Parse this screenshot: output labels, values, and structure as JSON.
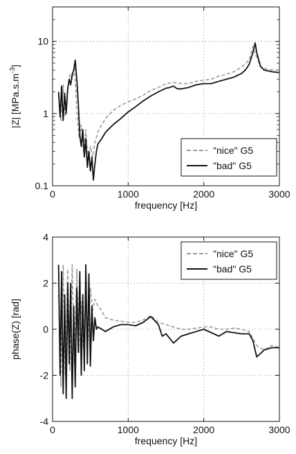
{
  "chart_data": [
    {
      "type": "line",
      "ylabel": "|Z| [MPa.s.m^-3]",
      "xlabel": "frequency [Hz]",
      "xlim": [
        0,
        3000
      ],
      "ylim": [
        0.1,
        30
      ],
      "yscale": "log",
      "grid": true,
      "legend_position": "bottom-right",
      "xticks": [
        0,
        1000,
        2000,
        3000
      ],
      "xtick_labels": [
        "0",
        "1000",
        "2000",
        "3000"
      ],
      "yticks": [
        0.1,
        1,
        10
      ],
      "ytick_labels": [
        "0.1",
        "1",
        "10"
      ],
      "series": [
        {
          "name": "\"nice\" G5",
          "style": "dashed",
          "color": "#9a9a9a",
          "x": [
            80,
            110,
            140,
            170,
            200,
            230,
            260,
            290,
            320,
            350,
            380,
            410,
            440,
            470,
            500,
            530,
            560,
            600,
            650,
            700,
            800,
            900,
            1000,
            1100,
            1200,
            1300,
            1400,
            1500,
            1600,
            1700,
            1800,
            1900,
            2000,
            2100,
            2200,
            2300,
            2400,
            2500,
            2600,
            2650,
            2700,
            2750,
            2800,
            2900,
            3000
          ],
          "y": [
            1.8,
            0.8,
            2.5,
            0.9,
            2.2,
            3.5,
            3.0,
            4.5,
            1.2,
            0.45,
            0.7,
            0.3,
            0.6,
            0.2,
            0.35,
            0.25,
            0.4,
            0.55,
            0.7,
            0.85,
            1.1,
            1.3,
            1.45,
            1.6,
            1.8,
            2.1,
            2.3,
            2.6,
            2.7,
            2.6,
            2.6,
            2.8,
            2.9,
            3.0,
            3.3,
            3.5,
            3.8,
            4.4,
            5.5,
            8.5,
            6.0,
            4.5,
            4.2,
            4.0,
            4.0
          ]
        },
        {
          "name": "\"bad\" G5",
          "style": "solid",
          "color": "#111111",
          "x": [
            80,
            100,
            120,
            140,
            160,
            180,
            200,
            220,
            240,
            260,
            280,
            300,
            320,
            340,
            360,
            380,
            400,
            420,
            440,
            460,
            480,
            500,
            520,
            540,
            560,
            580,
            600,
            650,
            700,
            750,
            800,
            900,
            1000,
            1100,
            1200,
            1300,
            1400,
            1500,
            1550,
            1600,
            1650,
            1700,
            1800,
            1900,
            2000,
            2100,
            2200,
            2300,
            2400,
            2500,
            2550,
            2600,
            2650,
            2680,
            2700,
            2750,
            2800,
            2900,
            3000
          ],
          "y": [
            2.0,
            0.9,
            2.4,
            0.8,
            1.9,
            1.0,
            2.2,
            3.0,
            2.5,
            3.5,
            4.0,
            5.5,
            3.0,
            1.4,
            0.5,
            0.35,
            0.6,
            0.25,
            0.45,
            0.18,
            0.3,
            0.16,
            0.25,
            0.12,
            0.2,
            0.3,
            0.38,
            0.45,
            0.55,
            0.62,
            0.7,
            0.85,
            1.05,
            1.25,
            1.5,
            1.75,
            2.0,
            2.25,
            2.3,
            2.4,
            2.2,
            2.2,
            2.3,
            2.5,
            2.6,
            2.6,
            2.8,
            3.0,
            3.2,
            3.6,
            4.0,
            4.8,
            7.0,
            9.5,
            7.0,
            4.5,
            4.0,
            3.8,
            3.7
          ]
        }
      ]
    },
    {
      "type": "line",
      "ylabel": "phase(Z) [rad]",
      "xlabel": "frequency [Hz]",
      "xlim": [
        0,
        3000
      ],
      "ylim": [
        -4,
        4
      ],
      "grid": true,
      "legend_position": "top-right",
      "xticks": [
        0,
        1000,
        2000,
        3000
      ],
      "xtick_labels": [
        "0",
        "1000",
        "2000",
        "3000"
      ],
      "yticks": [
        -4,
        -2,
        0,
        2,
        4
      ],
      "ytick_labels": [
        "-4",
        "-2",
        "0",
        "2",
        "4"
      ],
      "series": [
        {
          "name": "\"nice\" G5",
          "style": "dashed",
          "color": "#9a9a9a",
          "x": [
            80,
            110,
            140,
            170,
            200,
            230,
            260,
            290,
            320,
            350,
            380,
            410,
            440,
            470,
            500,
            530,
            560,
            600,
            650,
            700,
            800,
            900,
            1000,
            1100,
            1200,
            1300,
            1400,
            1500,
            1600,
            1700,
            1800,
            1900,
            2000,
            2100,
            2200,
            2300,
            2400,
            2500,
            2600,
            2700,
            2800,
            2900,
            3000
          ],
          "y": [
            1.5,
            -2.5,
            2.8,
            -2.0,
            2.6,
            -1.8,
            2.8,
            -1.5,
            2.6,
            -1.0,
            1.2,
            -0.8,
            1.5,
            -0.5,
            1.8,
            0.8,
            1.3,
            1.0,
            0.8,
            0.5,
            0.4,
            0.35,
            0.3,
            0.3,
            0.4,
            0.6,
            0.3,
            0.2,
            0.1,
            0.0,
            0.0,
            0.05,
            0.1,
            0.1,
            0.0,
            0.0,
            0.05,
            0.0,
            -0.1,
            -0.7,
            -0.9,
            -0.7,
            -0.8
          ]
        },
        {
          "name": "\"bad\" G5",
          "style": "solid",
          "color": "#111111",
          "x": [
            80,
            100,
            120,
            140,
            160,
            180,
            200,
            220,
            240,
            260,
            280,
            300,
            320,
            340,
            360,
            380,
            400,
            420,
            440,
            460,
            480,
            500,
            520,
            540,
            560,
            580,
            600,
            650,
            700,
            800,
            900,
            1000,
            1100,
            1200,
            1300,
            1400,
            1450,
            1500,
            1600,
            1700,
            1800,
            1900,
            2000,
            2100,
            2200,
            2300,
            2400,
            2500,
            2600,
            2650,
            2700,
            2800,
            2900,
            3000
          ],
          "y": [
            2.8,
            -2.0,
            2.5,
            -2.8,
            1.5,
            -3.0,
            2.0,
            -1.5,
            2.0,
            -3.0,
            1.0,
            -2.5,
            1.8,
            -1.0,
            2.5,
            -2.0,
            1.5,
            -1.8,
            2.8,
            -1.5,
            2.4,
            -1.6,
            1.0,
            -0.5,
            0.5,
            0.0,
            0.1,
            0.0,
            -0.1,
            0.1,
            0.2,
            0.2,
            0.15,
            0.3,
            0.55,
            0.2,
            -0.3,
            -0.2,
            -0.6,
            -0.3,
            -0.2,
            -0.1,
            0.0,
            -0.15,
            -0.3,
            -0.1,
            -0.15,
            -0.2,
            -0.2,
            -0.5,
            -1.2,
            -0.9,
            -0.8,
            -0.8
          ]
        }
      ]
    }
  ]
}
